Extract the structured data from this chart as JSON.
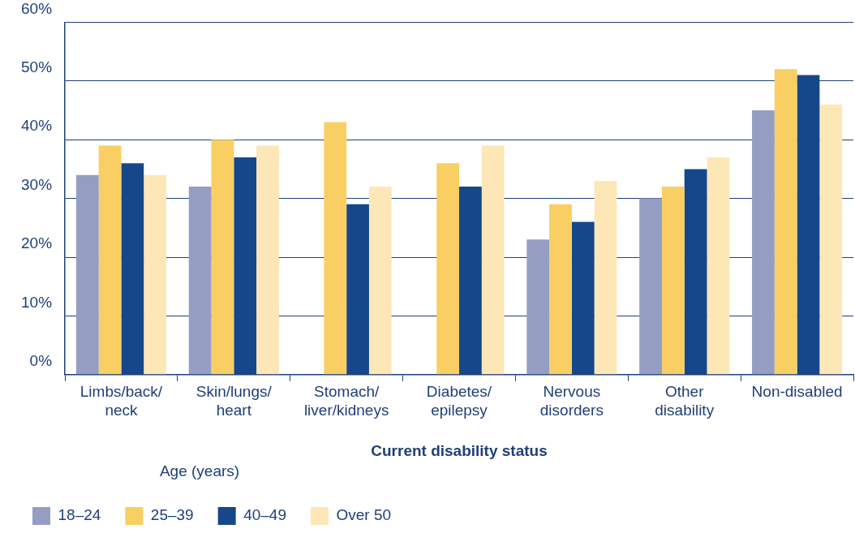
{
  "chart_data": {
    "type": "bar",
    "xlabel": "Current disability status",
    "legend_title": "Age (years)",
    "categories": [
      "Limbs/back/\nneck",
      "Skin/lungs/\nheart",
      "Stomach/\nliver/kidneys",
      "Diabetes/\nepilepsy",
      "Nervous\ndisorders",
      "Other\ndisability",
      "Non-disabled"
    ],
    "series": [
      {
        "name": "18–24",
        "color": "#959dc3",
        "values": [
          34,
          32,
          null,
          null,
          23,
          30,
          45
        ]
      },
      {
        "name": "25–39",
        "color": "#f9cf63",
        "values": [
          39,
          40,
          43,
          36,
          29,
          32,
          52
        ]
      },
      {
        "name": "40–49",
        "color": "#15478a",
        "values": [
          36,
          37,
          29,
          32,
          26,
          35,
          51
        ]
      },
      {
        "name": "Over 50",
        "color": "#fde7b7",
        "values": [
          34,
          39,
          32,
          39,
          33,
          37,
          46
        ]
      }
    ],
    "ylim": [
      0,
      60
    ],
    "yticks": [
      {
        "value": 0,
        "label": "0%"
      },
      {
        "value": 10,
        "label": "10%"
      },
      {
        "value": 20,
        "label": "20%"
      },
      {
        "value": 30,
        "label": "30%"
      },
      {
        "value": 40,
        "label": "40%"
      },
      {
        "value": 50,
        "label": "50%"
      },
      {
        "value": 60,
        "label": "60%"
      }
    ],
    "grid": "y",
    "legend": "bottom left"
  }
}
